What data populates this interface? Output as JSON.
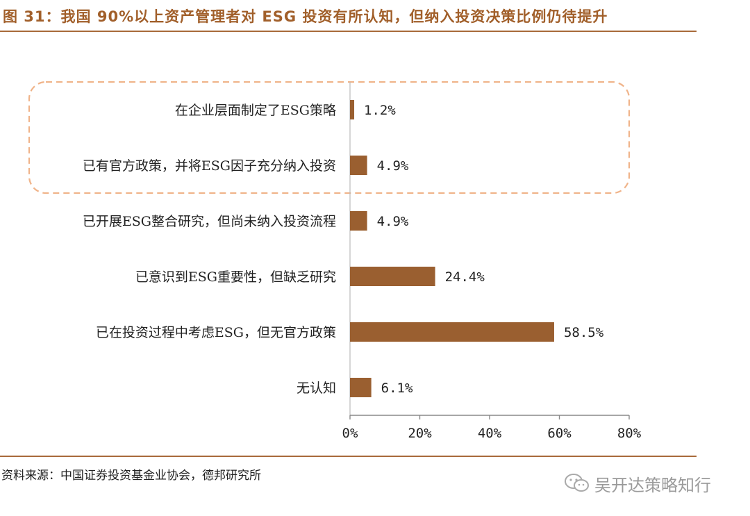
{
  "figure_title": "图 31：我国 90%以上资产管理者对 ESG 投资有所认知，但纳入投资决策比例仍待提升",
  "source_text": "资料来源：中国证券投资基金业协会，德邦研究所",
  "watermark_text": "吴开达策略知行",
  "colors": {
    "bar": "#9a5f30",
    "highlight_box": "#f0b48a",
    "title": "#a15f2a",
    "rule": "#a86a3a"
  },
  "chart_data": {
    "type": "bar",
    "orientation": "horizontal",
    "categories": [
      "在企业层面制定了ESG策略",
      "已有官方政策，并将ESG因子充分纳入投资",
      "已开展ESG整合研究，但尚未纳入投资流程",
      "已意识到ESG重要性，但缺乏研究",
      "已在投资过程中考虑ESG，但无官方政策",
      "无认知"
    ],
    "values": [
      1.2,
      4.9,
      4.9,
      24.4,
      58.5,
      6.1
    ],
    "value_labels": [
      "1.2%",
      "4.9%",
      "4.9%",
      "24.4%",
      "58.5%",
      "6.1%"
    ],
    "xlim": [
      0,
      80
    ],
    "xticks": [
      0,
      20,
      40,
      60,
      80
    ],
    "xtick_labels": [
      "0%",
      "20%",
      "40%",
      "60%",
      "80%"
    ],
    "highlighted_categories": [
      0,
      1
    ],
    "grid": false,
    "legend": "none"
  }
}
